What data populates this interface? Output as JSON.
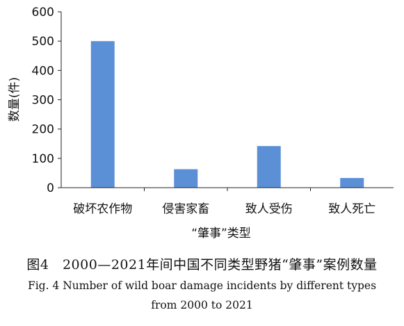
{
  "chart_data": {
    "type": "bar",
    "categories": [
      "破坏农作物",
      "侵害家畜",
      "致人受伤",
      "致人死亡"
    ],
    "values": [
      500,
      63,
      142,
      33
    ],
    "xlabel": "“肇事”类型",
    "ylabel": "数量(件)",
    "ylim": [
      0,
      600
    ],
    "yticks": [
      0,
      100,
      200,
      300,
      400,
      500,
      600
    ],
    "grid": false,
    "bar_color": "#5b8fd6"
  },
  "caption": {
    "zh": "图4　2000—2021年间中国不同类型野猪“肇事”案例数量",
    "en_line1": "Fig. 4   Number of wild boar damage incidents by different types",
    "en_line2": "from 2000 to 2021"
  }
}
